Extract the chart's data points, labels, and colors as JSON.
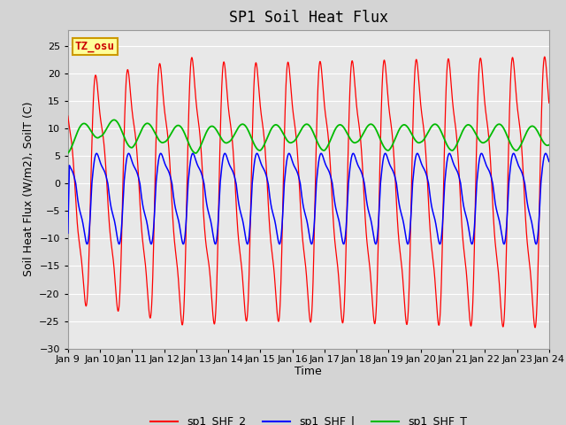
{
  "title": "SP1 Soil Heat Flux",
  "xlabel": "Time",
  "ylabel": "Soil Heat Flux (W/m2), SoilT (C)",
  "ylim": [
    -30,
    28
  ],
  "yticks": [
    -30,
    -25,
    -20,
    -15,
    -10,
    -5,
    0,
    5,
    10,
    15,
    20,
    25
  ],
  "xtick_labels": [
    "Jan 9",
    "Jan 10",
    "Jan 11",
    "Jan 12",
    "Jan 13",
    "Jan 14",
    "Jan 15",
    "Jan 16",
    "Jan 17",
    "Jan 18",
    "Jan 19",
    "Jan 20",
    "Jan 21",
    "Jan 22",
    "Jan 23",
    "Jan 24"
  ],
  "color_shf2": "#ff0000",
  "color_shf1": "#0000ff",
  "color_shft": "#00bb00",
  "legend_labels": [
    "sp1_SHF_2",
    "sp1_SHF_l",
    "sp1_SHF_T"
  ],
  "bg_color": "#d4d4d4",
  "plot_bg_color": "#e8e8e8",
  "watermark_text": "TZ_osu",
  "watermark_bg": "#ffff99",
  "watermark_border": "#cc9900",
  "title_fontsize": 12,
  "axis_fontsize": 9,
  "tick_fontsize": 8
}
